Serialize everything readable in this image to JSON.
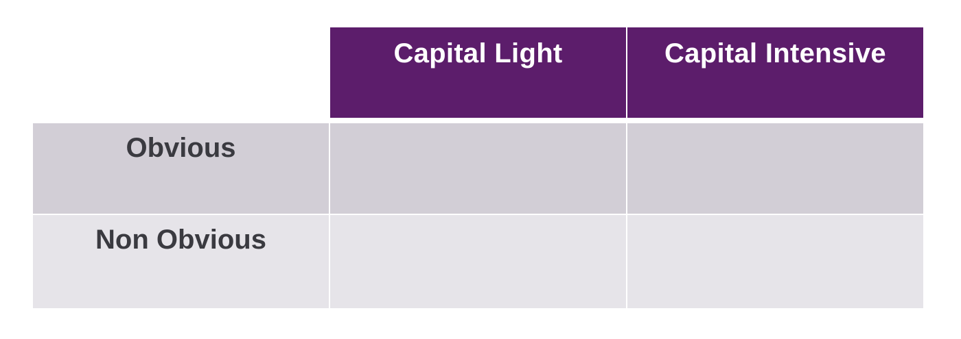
{
  "matrix": {
    "columns": [
      "Capital Light",
      "Capital Intensive"
    ],
    "rows": [
      "Obvious",
      "Non Obvious"
    ]
  },
  "colors": {
    "header_bg": "#5c1d6b",
    "header_text": "#ffffff",
    "row1_bg": "#d2ced6",
    "row2_bg": "#e6e4e9",
    "label_text": "#3a3a40"
  }
}
